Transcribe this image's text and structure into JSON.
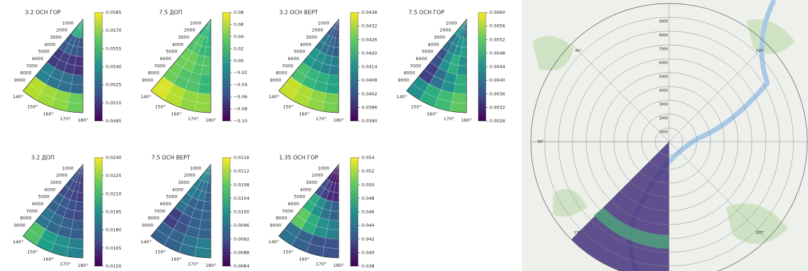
{
  "chart_data": [
    {
      "type": "polar-heatmap",
      "title": "3.2 ОСН ГОР",
      "rlim": [
        0,
        10000
      ],
      "rticks": [
        1000,
        2000,
        3000,
        4000,
        5000,
        6000,
        7000,
        8000,
        9000
      ],
      "thetalim": [
        140,
        180
      ],
      "thetaticks": [
        {
          "value": 140,
          "label": "140°"
        },
        {
          "value": 150,
          "label": "150°"
        },
        {
          "value": 160,
          "label": "160°"
        },
        {
          "value": 170,
          "label": "170°"
        },
        {
          "value": 180,
          "label": "180°"
        }
      ],
      "values": [
        [
          0.055,
          0.0552,
          0.055,
          0.0548
        ],
        [
          0.052,
          0.0522,
          0.052,
          0.0518
        ],
        [
          0.051,
          0.0512,
          0.051,
          0.0508
        ],
        [
          0.0535,
          0.053,
          0.0528,
          0.0525
        ],
        [
          0.0575,
          0.0572,
          0.057,
          0.0565
        ]
      ],
      "clim": [
        0.0495,
        0.0585
      ],
      "cticks": [
        0.0495,
        {
          "value": 0.051,
          "label": "0.0510"
        },
        0.0525,
        {
          "value": 0.054,
          "label": "0.0540"
        },
        0.0555,
        {
          "value": 0.057,
          "label": "0.0570"
        },
        0.0585
      ],
      "colormap": "viridis"
    },
    {
      "type": "polar-heatmap",
      "title": "7.5 ДОП",
      "rlim": [
        0,
        10000
      ],
      "rticks": [
        1000,
        2000,
        3000,
        4000,
        5000,
        6000,
        7000,
        8000,
        9000
      ],
      "thetalim": [
        140,
        180
      ],
      "thetaticks": [
        {
          "value": 140,
          "label": "140°"
        },
        {
          "value": 150,
          "label": "150°"
        },
        {
          "value": 160,
          "label": "160°"
        },
        {
          "value": 170,
          "label": "170°"
        },
        {
          "value": 180,
          "label": "180°"
        }
      ],
      "values": [
        [
          0.01,
          0.02,
          0.02,
          0.01
        ],
        [
          0.03,
          0.03,
          0.02,
          0.02
        ],
        [
          0.04,
          0.04,
          0.03,
          0.03
        ],
        [
          0.04,
          0.03,
          0.03,
          0.02
        ],
        [
          0.07,
          0.06,
          0.05,
          0.05
        ]
      ],
      "clim": [
        -0.1,
        0.08
      ],
      "cticks": [
        0.08,
        0.06,
        0.04,
        0.02,
        {
          "value": 0,
          "label": "0.00"
        },
        {
          "value": -0.02,
          "label": "−0.02"
        },
        {
          "value": -0.04,
          "label": "−0.04"
        },
        {
          "value": -0.06,
          "label": "−0.06"
        },
        {
          "value": -0.08,
          "label": "−0.08"
        },
        {
          "value": -0.1,
          "label": "−0.10"
        }
      ],
      "colormap": "viridis"
    },
    {
      "type": "polar-heatmap",
      "title": "3.2 ОСН ВЕРТ",
      "rlim": [
        0,
        10000
      ],
      "rticks": [
        1000,
        2000,
        3000,
        4000,
        5000,
        6000,
        7000,
        8000,
        9000
      ],
      "thetalim": [
        140,
        180
      ],
      "thetaticks": [
        {
          "value": 140,
          "label": "140°"
        },
        {
          "value": 150,
          "label": "150°"
        },
        {
          "value": 160,
          "label": "160°"
        },
        {
          "value": 170,
          "label": "170°"
        },
        {
          "value": 180,
          "label": "180°"
        }
      ],
      "values": [
        [
          0.0405,
          0.0404,
          0.0402,
          0.04
        ],
        [
          0.041,
          0.0408,
          0.0406,
          0.0404
        ],
        [
          0.0416,
          0.0414,
          0.0412,
          0.041
        ],
        [
          0.0424,
          0.0422,
          0.042,
          0.0418
        ],
        [
          0.0434,
          0.0432,
          0.043,
          0.0428
        ]
      ],
      "clim": [
        0.039,
        0.0438
      ],
      "cticks": [
        {
          "value": 0.039,
          "label": "0.0390"
        },
        0.0396,
        0.0402,
        0.0408,
        0.0414,
        {
          "value": 0.042,
          "label": "0.0420"
        },
        0.0426,
        0.0432,
        0.0438
      ],
      "colormap": "viridis"
    },
    {
      "type": "polar-heatmap",
      "title": "7.5 ОСН ГОР",
      "rlim": [
        0,
        10000
      ],
      "rticks": [
        1000,
        2000,
        3000,
        4000,
        5000,
        6000,
        7000,
        8000,
        9000
      ],
      "thetalim": [
        140,
        180
      ],
      "thetaticks": [
        {
          "value": 140,
          "label": "140°"
        },
        {
          "value": 150,
          "label": "150°"
        },
        {
          "value": 160,
          "label": "160°"
        },
        {
          "value": 170,
          "label": "170°"
        },
        {
          "value": 180,
          "label": "180°"
        }
      ],
      "values": [
        [
          0.0046,
          0.0044,
          0.0042,
          0.004
        ],
        [
          0.004,
          0.0042,
          0.0044,
          0.0046
        ],
        [
          0.0036,
          0.0044,
          0.0048,
          0.0044
        ],
        [
          0.0034,
          0.004,
          0.0044,
          0.0048
        ],
        [
          0.0044,
          0.0048,
          0.005,
          0.0052
        ]
      ],
      "clim": [
        0.0028,
        0.006
      ],
      "cticks": [
        0.0028,
        0.0032,
        0.0036,
        {
          "value": 0.004,
          "label": "0.0040"
        },
        0.0044,
        0.0048,
        0.0052,
        0.0056,
        {
          "value": 0.006,
          "label": "0.0060"
        }
      ],
      "colormap": "viridis"
    },
    {
      "type": "polar-heatmap",
      "title": "3.2 ДОП",
      "rlim": [
        0,
        10000
      ],
      "rticks": [
        1000,
        2000,
        3000,
        4000,
        5000,
        6000,
        7000,
        8000,
        9000
      ],
      "thetalim": [
        140,
        180
      ],
      "thetaticks": [
        {
          "value": 140,
          "label": "140°"
        },
        {
          "value": 150,
          "label": "150°"
        },
        {
          "value": 160,
          "label": "160°"
        },
        {
          "value": 170,
          "label": "170°"
        },
        {
          "value": 180,
          "label": "180°"
        }
      ],
      "values": [
        [
          0.0175,
          0.017,
          0.0168,
          0.0165
        ],
        [
          0.0172,
          0.017,
          0.0168,
          0.0166
        ],
        [
          0.0178,
          0.0175,
          0.0172,
          0.017
        ],
        [
          0.0185,
          0.018,
          0.0178,
          0.0176
        ],
        [
          0.0215,
          0.02,
          0.0195,
          0.019
        ]
      ],
      "clim": [
        0.015,
        0.024
      ],
      "cticks": [
        {
          "value": 0.015,
          "label": "0.0150"
        },
        0.0165,
        {
          "value": 0.018,
          "label": "0.0180"
        },
        0.0195,
        {
          "value": 0.021,
          "label": "0.0210"
        },
        0.0225,
        {
          "value": 0.024,
          "label": "0.0240"
        }
      ],
      "colormap": "viridis"
    },
    {
      "type": "polar-heatmap",
      "title": "7.5 ОСН ВЕРТ",
      "rlim": [
        0,
        10000
      ],
      "rticks": [
        1000,
        2000,
        3000,
        4000,
        5000,
        6000,
        7000,
        8000,
        9000
      ],
      "thetalim": [
        140,
        180
      ],
      "thetaticks": [
        {
          "value": 140,
          "label": "140°"
        },
        {
          "value": 150,
          "label": "150°"
        },
        {
          "value": 160,
          "label": "160°"
        },
        {
          "value": 170,
          "label": "170°"
        },
        {
          "value": 180,
          "label": "180°"
        }
      ],
      "values": [
        [
          0.01,
          0.0098,
          0.0098,
          0.0096
        ],
        [
          0.0098,
          0.0096,
          0.0096,
          0.0094
        ],
        [
          0.0096,
          0.0094,
          0.0094,
          0.0094
        ],
        [
          0.009,
          0.0092,
          0.0094,
          0.0094
        ],
        [
          0.0094,
          0.0094,
          0.0096,
          0.0098
        ]
      ],
      "clim": [
        0.0084,
        0.0116
      ],
      "cticks": [
        0.0084,
        0.0088,
        0.0092,
        0.0096,
        {
          "value": 0.01,
          "label": "0.0100"
        },
        0.0104,
        0.0108,
        0.0112,
        0.0116
      ],
      "colormap": "viridis"
    },
    {
      "type": "polar-heatmap",
      "title": "1.35 ОСН ГОР",
      "rlim": [
        0,
        10000
      ],
      "rticks": [
        1000,
        2000,
        3000,
        4000,
        5000,
        6000,
        7000,
        8000,
        9000
      ],
      "thetalim": [
        140,
        180
      ],
      "thetaticks": [
        {
          "value": 140,
          "label": "140°"
        },
        {
          "value": 150,
          "label": "150°"
        },
        {
          "value": 160,
          "label": "160°"
        },
        {
          "value": 170,
          "label": "170°"
        },
        {
          "value": 180,
          "label": "180°"
        }
      ],
      "values": [
        [
          0.04,
          0.039,
          0.039,
          0.039
        ],
        [
          0.042,
          0.041,
          0.04,
          0.04
        ],
        [
          0.048,
          0.046,
          0.044,
          0.043
        ],
        [
          0.05,
          0.048,
          0.046,
          0.045
        ],
        [
          0.044,
          0.043,
          0.042,
          0.042
        ]
      ],
      "clim": [
        0.038,
        0.054
      ],
      "cticks": [
        0.038,
        {
          "value": 0.04,
          "label": "0.040"
        },
        0.042,
        0.044,
        0.046,
        0.048,
        {
          "value": 0.05,
          "label": "0.050"
        },
        0.052,
        0.054
      ],
      "colormap": "viridis"
    },
    {
      "type": "polar-map",
      "rlim": [
        0,
        10000
      ],
      "rticks": [
        1000,
        2000,
        3000,
        4000,
        5000,
        6000,
        7000,
        8000,
        9000
      ],
      "thetaticks": [
        {
          "value": 45,
          "label": "45°"
        },
        {
          "value": 90,
          "label": "90°"
        },
        {
          "value": 135,
          "label": "135°"
        },
        {
          "value": 225,
          "label": "225°"
        },
        {
          "value": 315,
          "label": "315°"
        }
      ]
    }
  ]
}
